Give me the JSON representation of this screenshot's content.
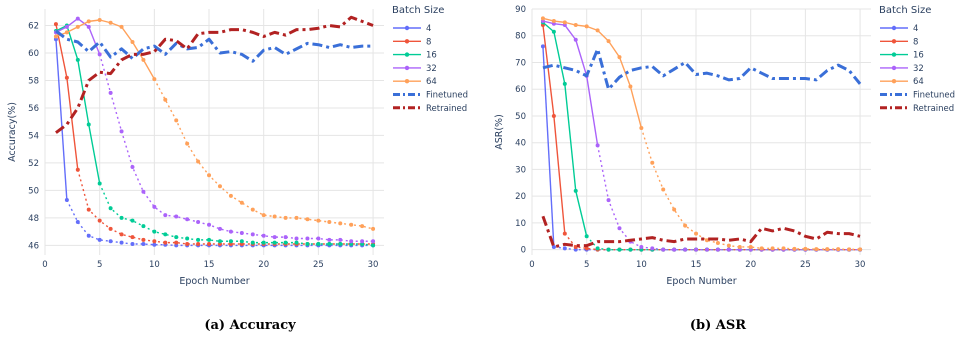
{
  "captions": [
    "(a) Accuracy",
    "(b) ASR"
  ],
  "chart_data": [
    {
      "type": "line",
      "xlabel": "Epoch Number",
      "ylabel": "Accuracy(%)",
      "xlim": [
        0,
        31
      ],
      "ylim": [
        45.3,
        63.2
      ],
      "xticks": [
        0,
        5,
        10,
        15,
        20,
        25,
        30
      ],
      "yticks": [
        46,
        48,
        50,
        52,
        54,
        56,
        58,
        60,
        62
      ],
      "grid": true,
      "legend": {
        "title": "Batch Size",
        "placement": "right"
      },
      "x": [
        1,
        2,
        3,
        4,
        5,
        6,
        7,
        8,
        9,
        10,
        11,
        12,
        13,
        14,
        15,
        16,
        17,
        18,
        19,
        20,
        21,
        22,
        23,
        24,
        25,
        26,
        27,
        28,
        29,
        30
      ],
      "series": [
        {
          "name": "4",
          "color": "#636efa",
          "style": "dotted",
          "cut": 2,
          "values": [
            61.0,
            49.3,
            47.7,
            46.7,
            46.4,
            46.3,
            46.2,
            46.1,
            46.1,
            46.05,
            46.05,
            46.0,
            46.0,
            46.0,
            46.0,
            46.0,
            46.0,
            46.0,
            46.0,
            46.0,
            46.0,
            46.0,
            46.0,
            46.0,
            46.0,
            46.0,
            46.0,
            46.0,
            46.0,
            46.0
          ]
        },
        {
          "name": "8",
          "color": "#ef553b",
          "style": "dotted",
          "cut": 3,
          "values": [
            62.1,
            58.2,
            51.5,
            48.6,
            47.8,
            47.2,
            46.8,
            46.6,
            46.4,
            46.3,
            46.2,
            46.2,
            46.1,
            46.1,
            46.1,
            46.1,
            46.1,
            46.1,
            46.1,
            46.1,
            46.1,
            46.1,
            46.1,
            46.1,
            46.1,
            46.1,
            46.1,
            46.1,
            46.1,
            46.1
          ]
        },
        {
          "name": "16",
          "color": "#00cc96",
          "style": "dotted",
          "cut": 5,
          "values": [
            61.6,
            62.0,
            59.5,
            54.8,
            50.5,
            48.7,
            48.0,
            47.8,
            47.4,
            47.0,
            46.8,
            46.6,
            46.5,
            46.4,
            46.4,
            46.3,
            46.3,
            46.3,
            46.2,
            46.2,
            46.2,
            46.2,
            46.2,
            46.1,
            46.1,
            46.1,
            46.1,
            46.1,
            46.1,
            46.0
          ]
        },
        {
          "name": "32",
          "color": "#ab63fa",
          "style": "dotted",
          "cut": 5,
          "values": [
            61.5,
            61.9,
            62.5,
            61.9,
            59.9,
            57.1,
            54.3,
            51.7,
            49.9,
            48.8,
            48.2,
            48.1,
            47.9,
            47.7,
            47.5,
            47.2,
            47.0,
            46.9,
            46.8,
            46.7,
            46.6,
            46.6,
            46.5,
            46.5,
            46.5,
            46.4,
            46.4,
            46.3,
            46.3,
            46.3
          ]
        },
        {
          "name": "64",
          "color": "#ffa15a",
          "style": "dotted",
          "cut": 10,
          "values": [
            61.2,
            61.5,
            61.9,
            62.3,
            62.4,
            62.2,
            61.9,
            60.8,
            59.5,
            58.1,
            56.6,
            55.1,
            53.4,
            52.1,
            51.1,
            50.3,
            49.6,
            49.1,
            48.6,
            48.2,
            48.1,
            48.0,
            48.0,
            47.9,
            47.8,
            47.7,
            47.6,
            47.5,
            47.4,
            47.2
          ]
        },
        {
          "name": "Finetuned",
          "color": "#3a6fd8",
          "style": "dashdot",
          "cut": 0,
          "values": [
            61.6,
            61.0,
            60.8,
            60.1,
            60.8,
            59.7,
            60.3,
            59.6,
            60.3,
            60.5,
            59.9,
            60.7,
            60.3,
            60.4,
            61.0,
            60.0,
            60.1,
            59.9,
            59.4,
            60.2,
            60.4,
            59.9,
            60.3,
            60.7,
            60.6,
            60.4,
            60.6,
            60.4,
            60.5,
            60.5
          ]
        },
        {
          "name": "Retrained",
          "color": "#b22222",
          "style": "dashdot",
          "cut": 0,
          "values": [
            54.2,
            54.8,
            56.0,
            58.0,
            58.6,
            58.5,
            59.5,
            59.9,
            59.9,
            60.1,
            61.0,
            60.9,
            60.3,
            61.4,
            61.5,
            61.5,
            61.7,
            61.7,
            61.5,
            61.2,
            61.5,
            61.3,
            61.7,
            61.7,
            61.8,
            62.0,
            61.9,
            62.6,
            62.3,
            62.0
          ]
        }
      ]
    },
    {
      "type": "line",
      "xlabel": "Epoch Number",
      "ylabel": "ASR(%)",
      "xlim": [
        0,
        31
      ],
      "ylim": [
        -2,
        90
      ],
      "xticks": [
        0,
        5,
        10,
        15,
        20,
        25,
        30
      ],
      "yticks": [
        0,
        10,
        20,
        30,
        40,
        50,
        60,
        70,
        80,
        90
      ],
      "grid": true,
      "legend": {
        "title": "Batch Size",
        "placement": "right"
      },
      "x": [
        1,
        2,
        3,
        4,
        5,
        6,
        7,
        8,
        9,
        10,
        11,
        12,
        13,
        14,
        15,
        16,
        17,
        18,
        19,
        20,
        21,
        22,
        23,
        24,
        25,
        26,
        27,
        28,
        29,
        30
      ],
      "series": [
        {
          "name": "4",
          "color": "#636efa",
          "style": "dotted",
          "cut": 2,
          "values": [
            76,
            1,
            0.5,
            0,
            0,
            0,
            0,
            0,
            0,
            0,
            0,
            0,
            0,
            0,
            0,
            0,
            0,
            0,
            0,
            0,
            0,
            0,
            0,
            0,
            0,
            0,
            0,
            0,
            0,
            0
          ]
        },
        {
          "name": "8",
          "color": "#ef553b",
          "style": "dotted",
          "cut": 3,
          "values": [
            84,
            50,
            6,
            1,
            0.5,
            0,
            0,
            0,
            0,
            0,
            0,
            0,
            0,
            0,
            0,
            0,
            0,
            0,
            0,
            0,
            0,
            0,
            0,
            0,
            0,
            0,
            0,
            0,
            0,
            0
          ]
        },
        {
          "name": "16",
          "color": "#00cc96",
          "style": "dotted",
          "cut": 5,
          "values": [
            85,
            81.5,
            62,
            22,
            5,
            0.5,
            0,
            0,
            0,
            0,
            0,
            0,
            0,
            0,
            0,
            0,
            0,
            0,
            0,
            0,
            0,
            0,
            0,
            0,
            0,
            0,
            0,
            0,
            0,
            0
          ]
        },
        {
          "name": "32",
          "color": "#ab63fa",
          "style": "dotted",
          "cut": 6,
          "values": [
            85.5,
            84.5,
            84,
            78.5,
            65,
            39,
            18.5,
            8,
            3,
            1,
            0.5,
            0,
            0,
            0,
            0,
            0,
            0,
            0,
            0,
            0,
            0,
            0,
            0,
            0,
            0,
            0,
            0,
            0,
            0,
            0
          ]
        },
        {
          "name": "64",
          "color": "#ffa15a",
          "style": "dotted",
          "cut": 10,
          "values": [
            86.5,
            85.5,
            85,
            84,
            83.5,
            82,
            78,
            72,
            61,
            45.5,
            32.5,
            22.5,
            15,
            9,
            6,
            3.5,
            2.5,
            1.5,
            1,
            1,
            0.5,
            0.5,
            0.5,
            0.3,
            0.3,
            0.2,
            0.2,
            0.2,
            0.1,
            0.1
          ]
        },
        {
          "name": "Finetuned",
          "color": "#3a6fd8",
          "style": "dashdot",
          "cut": 0,
          "values": [
            68,
            69,
            68,
            67,
            65,
            75,
            60,
            64.5,
            67,
            68,
            68.5,
            65,
            67.5,
            70,
            65.5,
            66,
            65,
            63.5,
            64,
            68,
            66,
            64,
            64,
            64,
            64,
            63.5,
            67,
            69,
            67,
            62
          ]
        },
        {
          "name": "Retrained",
          "color": "#b22222",
          "style": "dashdot",
          "cut": 0,
          "values": [
            12.5,
            1,
            2,
            1.5,
            1.5,
            3,
            3,
            3,
            3.5,
            4,
            4.5,
            3.5,
            3,
            4,
            4,
            4,
            4,
            3.5,
            4,
            3,
            8,
            7,
            8,
            7,
            5,
            4,
            6.5,
            6,
            6,
            5
          ]
        }
      ]
    }
  ]
}
